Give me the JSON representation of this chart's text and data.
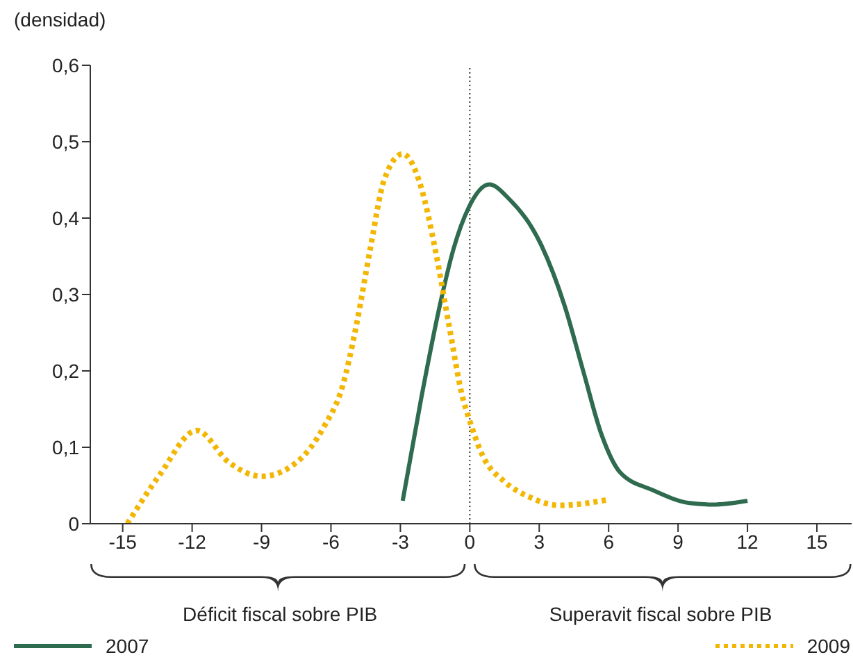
{
  "chart_data": {
    "type": "line",
    "ylabel": "(densidad)",
    "xlim": [
      -16.4,
      16.5
    ],
    "xticks": [
      -15,
      -12,
      -9,
      -6,
      -3,
      0,
      3,
      6,
      9,
      12,
      15
    ],
    "ylim": [
      0,
      0.6
    ],
    "yticks": [
      {
        "value": 0,
        "label": "0"
      },
      {
        "value": 0.1,
        "label": "0,1"
      },
      {
        "value": 0.2,
        "label": "0,2"
      },
      {
        "value": 0.3,
        "label": "0,3"
      },
      {
        "value": 0.4,
        "label": "0,4"
      },
      {
        "value": 0.5,
        "label": "0,5"
      },
      {
        "value": 0.6,
        "label": "0,6"
      }
    ],
    "grid": false,
    "legend": "bottom",
    "marker": "none",
    "ref_lines": [
      {
        "axis": "x",
        "value": 0,
        "color": "#333333",
        "line_style": "dotted"
      }
    ],
    "annotations": [
      "Déficit fiscal sobre PIB",
      "Superavit fiscal sobre PIB"
    ],
    "series": [
      {
        "name": "2007",
        "color": "#2e6b4f",
        "line_style": "solid",
        "x": [
          -2.9,
          -2.1,
          -1.3,
          -0.7,
          -0.06,
          0.84,
          1.7,
          3.1,
          4.1,
          4.9,
          5.7,
          6.5,
          7.9,
          9.5,
          10.5,
          12.0
        ],
        "values": [
          0.03,
          0.164,
          0.285,
          0.36,
          0.413,
          0.444,
          0.425,
          0.364,
          0.285,
          0.2,
          0.116,
          0.067,
          0.044,
          0.027,
          0.025,
          0.03
        ]
      },
      {
        "name": "2009",
        "color": "#f2b705",
        "line_style": "dotted",
        "x": [
          -14.8,
          -13.4,
          -11.8,
          -10.4,
          -9.0,
          -7.5,
          -6.3,
          -5.5,
          -4.9,
          -4.3,
          -3.7,
          -2.9,
          -2.1,
          -1.5,
          -0.9,
          -0.3,
          -0.06,
          0.54,
          1.5,
          2.5,
          3.9,
          5.9
        ],
        "values": [
          0,
          0.064,
          0.122,
          0.08,
          0.062,
          0.08,
          0.127,
          0.18,
          0.26,
          0.36,
          0.45,
          0.484,
          0.44,
          0.36,
          0.26,
          0.164,
          0.14,
          0.09,
          0.055,
          0.036,
          0.024,
          0.031
        ]
      }
    ]
  }
}
